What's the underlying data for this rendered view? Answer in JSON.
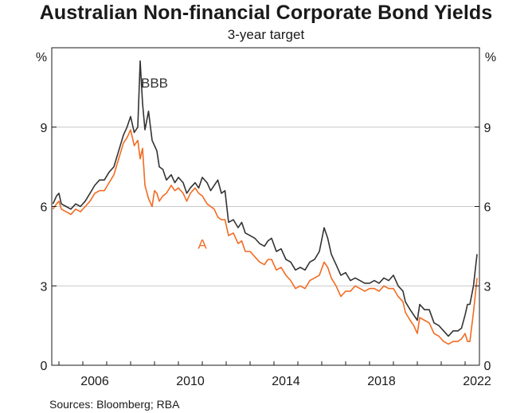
{
  "chart_data": {
    "type": "line",
    "title": "Australian Non-financial Corporate Bond Yields",
    "subtitle": "3-year target",
    "unit_left": "%",
    "unit_right": "%",
    "ylim": [
      0,
      12
    ],
    "yticks": [
      0,
      3,
      6,
      9
    ],
    "xlim": [
      2004.7,
      2022.6
    ],
    "xticks": [
      {
        "value": 2006,
        "label": "2006"
      },
      {
        "value": 2010,
        "label": "2010"
      },
      {
        "value": 2014,
        "label": "2014"
      },
      {
        "value": 2018,
        "label": "2018"
      },
      {
        "value": 2022,
        "label": "2022"
      }
    ],
    "grid": true,
    "source": "Sources: Bloomberg; RBA",
    "series": [
      {
        "name": "BBB",
        "color": "#333333",
        "label_at": [
          2009.0,
          10.5
        ],
        "points": [
          [
            2004.75,
            6.1
          ],
          [
            2004.9,
            6.4
          ],
          [
            2005.0,
            6.5
          ],
          [
            2005.1,
            6.1
          ],
          [
            2005.3,
            6.0
          ],
          [
            2005.5,
            5.9
          ],
          [
            2005.7,
            6.1
          ],
          [
            2005.9,
            6.0
          ],
          [
            2006.1,
            6.2
          ],
          [
            2006.3,
            6.5
          ],
          [
            2006.5,
            6.8
          ],
          [
            2006.7,
            7.0
          ],
          [
            2006.9,
            7.0
          ],
          [
            2007.1,
            7.3
          ],
          [
            2007.3,
            7.5
          ],
          [
            2007.5,
            8.1
          ],
          [
            2007.7,
            8.7
          ],
          [
            2007.85,
            9.0
          ],
          [
            2008.0,
            9.4
          ],
          [
            2008.15,
            8.8
          ],
          [
            2008.3,
            9.0
          ],
          [
            2008.4,
            11.5
          ],
          [
            2008.5,
            9.9
          ],
          [
            2008.6,
            8.9
          ],
          [
            2008.75,
            9.6
          ],
          [
            2008.9,
            8.5
          ],
          [
            2009.0,
            8.3
          ],
          [
            2009.1,
            8.1
          ],
          [
            2009.2,
            7.5
          ],
          [
            2009.35,
            7.4
          ],
          [
            2009.5,
            7.0
          ],
          [
            2009.7,
            7.2
          ],
          [
            2009.85,
            6.9
          ],
          [
            2010.0,
            7.1
          ],
          [
            2010.2,
            6.9
          ],
          [
            2010.35,
            6.5
          ],
          [
            2010.5,
            6.7
          ],
          [
            2010.7,
            6.9
          ],
          [
            2010.85,
            6.7
          ],
          [
            2011.0,
            7.1
          ],
          [
            2011.2,
            6.9
          ],
          [
            2011.35,
            6.6
          ],
          [
            2011.5,
            6.8
          ],
          [
            2011.65,
            7.0
          ],
          [
            2011.8,
            6.5
          ],
          [
            2011.95,
            6.6
          ],
          [
            2012.1,
            5.4
          ],
          [
            2012.3,
            5.5
          ],
          [
            2012.5,
            5.2
          ],
          [
            2012.65,
            5.4
          ],
          [
            2012.8,
            5.0
          ],
          [
            2013.0,
            4.9
          ],
          [
            2013.2,
            4.8
          ],
          [
            2013.4,
            4.6
          ],
          [
            2013.6,
            4.5
          ],
          [
            2013.75,
            4.7
          ],
          [
            2013.9,
            4.8
          ],
          [
            2014.1,
            4.3
          ],
          [
            2014.3,
            4.4
          ],
          [
            2014.5,
            4.0
          ],
          [
            2014.7,
            3.9
          ],
          [
            2014.9,
            3.6
          ],
          [
            2015.1,
            3.7
          ],
          [
            2015.3,
            3.6
          ],
          [
            2015.5,
            3.9
          ],
          [
            2015.7,
            4.0
          ],
          [
            2015.9,
            4.3
          ],
          [
            2016.1,
            5.2
          ],
          [
            2016.25,
            4.8
          ],
          [
            2016.4,
            4.2
          ],
          [
            2016.6,
            3.8
          ],
          [
            2016.8,
            3.4
          ],
          [
            2017.0,
            3.5
          ],
          [
            2017.2,
            3.2
          ],
          [
            2017.4,
            3.3
          ],
          [
            2017.6,
            3.2
          ],
          [
            2017.8,
            3.1
          ],
          [
            2018.0,
            3.1
          ],
          [
            2018.2,
            3.2
          ],
          [
            2018.4,
            3.1
          ],
          [
            2018.6,
            3.3
          ],
          [
            2018.8,
            3.2
          ],
          [
            2019.0,
            3.4
          ],
          [
            2019.2,
            3.0
          ],
          [
            2019.4,
            2.8
          ],
          [
            2019.5,
            2.4
          ],
          [
            2019.7,
            2.1
          ],
          [
            2019.85,
            1.9
          ],
          [
            2020.0,
            1.7
          ],
          [
            2020.1,
            2.3
          ],
          [
            2020.3,
            2.1
          ],
          [
            2020.5,
            2.1
          ],
          [
            2020.7,
            1.6
          ],
          [
            2020.9,
            1.5
          ],
          [
            2021.1,
            1.3
          ],
          [
            2021.3,
            1.1
          ],
          [
            2021.5,
            1.3
          ],
          [
            2021.7,
            1.3
          ],
          [
            2021.85,
            1.4
          ],
          [
            2022.0,
            1.9
          ],
          [
            2022.1,
            2.3
          ],
          [
            2022.2,
            2.3
          ],
          [
            2022.35,
            3.0
          ],
          [
            2022.5,
            4.2
          ],
          [
            2022.65,
            4.8
          ],
          [
            2022.8,
            5.5
          ],
          [
            2022.9,
            5.2
          ],
          [
            2023.0,
            5.8
          ],
          [
            2023.15,
            5.9
          ]
        ]
      },
      {
        "name": "A",
        "color": "#f26b21",
        "label_at": [
          2011.0,
          4.4
        ],
        "points": [
          [
            2004.75,
            5.9
          ],
          [
            2004.9,
            6.1
          ],
          [
            2005.0,
            6.2
          ],
          [
            2005.1,
            5.9
          ],
          [
            2005.3,
            5.8
          ],
          [
            2005.5,
            5.7
          ],
          [
            2005.7,
            5.9
          ],
          [
            2005.9,
            5.8
          ],
          [
            2006.1,
            6.0
          ],
          [
            2006.3,
            6.2
          ],
          [
            2006.5,
            6.5
          ],
          [
            2006.7,
            6.6
          ],
          [
            2006.9,
            6.6
          ],
          [
            2007.1,
            6.9
          ],
          [
            2007.3,
            7.2
          ],
          [
            2007.5,
            7.8
          ],
          [
            2007.7,
            8.4
          ],
          [
            2007.85,
            8.6
          ],
          [
            2008.0,
            8.9
          ],
          [
            2008.15,
            8.3
          ],
          [
            2008.3,
            8.5
          ],
          [
            2008.4,
            7.8
          ],
          [
            2008.5,
            8.2
          ],
          [
            2008.6,
            6.8
          ],
          [
            2008.75,
            6.3
          ],
          [
            2008.9,
            6.0
          ],
          [
            2009.0,
            6.6
          ],
          [
            2009.1,
            6.5
          ],
          [
            2009.2,
            6.2
          ],
          [
            2009.35,
            6.4
          ],
          [
            2009.5,
            6.5
          ],
          [
            2009.7,
            6.8
          ],
          [
            2009.85,
            6.6
          ],
          [
            2010.0,
            6.7
          ],
          [
            2010.2,
            6.5
          ],
          [
            2010.35,
            6.2
          ],
          [
            2010.5,
            6.5
          ],
          [
            2010.7,
            6.7
          ],
          [
            2010.85,
            6.5
          ],
          [
            2011.0,
            6.4
          ],
          [
            2011.2,
            6.1
          ],
          [
            2011.35,
            6.0
          ],
          [
            2011.5,
            5.9
          ],
          [
            2011.65,
            5.6
          ],
          [
            2011.8,
            5.5
          ],
          [
            2011.95,
            5.5
          ],
          [
            2012.1,
            4.9
          ],
          [
            2012.3,
            5.0
          ],
          [
            2012.5,
            4.6
          ],
          [
            2012.65,
            4.7
          ],
          [
            2012.8,
            4.3
          ],
          [
            2013.0,
            4.3
          ],
          [
            2013.2,
            4.1
          ],
          [
            2013.4,
            3.9
          ],
          [
            2013.6,
            3.8
          ],
          [
            2013.75,
            4.0
          ],
          [
            2013.9,
            4.0
          ],
          [
            2014.1,
            3.6
          ],
          [
            2014.3,
            3.7
          ],
          [
            2014.5,
            3.4
          ],
          [
            2014.7,
            3.2
          ],
          [
            2014.9,
            2.9
          ],
          [
            2015.1,
            3.0
          ],
          [
            2015.3,
            2.9
          ],
          [
            2015.5,
            3.2
          ],
          [
            2015.7,
            3.3
          ],
          [
            2015.9,
            3.4
          ],
          [
            2016.1,
            3.9
          ],
          [
            2016.25,
            3.7
          ],
          [
            2016.4,
            3.3
          ],
          [
            2016.6,
            3.0
          ],
          [
            2016.8,
            2.6
          ],
          [
            2017.0,
            2.8
          ],
          [
            2017.2,
            2.8
          ],
          [
            2017.4,
            3.0
          ],
          [
            2017.6,
            2.9
          ],
          [
            2017.8,
            2.8
          ],
          [
            2018.0,
            2.9
          ],
          [
            2018.2,
            2.9
          ],
          [
            2018.4,
            2.8
          ],
          [
            2018.6,
            3.0
          ],
          [
            2018.8,
            2.9
          ],
          [
            2019.0,
            2.9
          ],
          [
            2019.2,
            2.6
          ],
          [
            2019.4,
            2.4
          ],
          [
            2019.5,
            2.0
          ],
          [
            2019.7,
            1.7
          ],
          [
            2019.85,
            1.5
          ],
          [
            2020.0,
            1.2
          ],
          [
            2020.1,
            1.8
          ],
          [
            2020.3,
            1.7
          ],
          [
            2020.5,
            1.6
          ],
          [
            2020.7,
            1.2
          ],
          [
            2020.9,
            1.1
          ],
          [
            2021.1,
            0.9
          ],
          [
            2021.3,
            0.8
          ],
          [
            2021.5,
            0.9
          ],
          [
            2021.7,
            0.9
          ],
          [
            2021.85,
            1.0
          ],
          [
            2022.0,
            1.2
          ],
          [
            2022.1,
            0.9
          ],
          [
            2022.2,
            0.9
          ],
          [
            2022.35,
            2.0
          ],
          [
            2022.5,
            3.3
          ],
          [
            2022.65,
            4.3
          ],
          [
            2022.8,
            4.9
          ],
          [
            2022.9,
            4.4
          ],
          [
            2023.0,
            5.0
          ],
          [
            2023.15,
            5.2
          ]
        ]
      }
    ]
  }
}
